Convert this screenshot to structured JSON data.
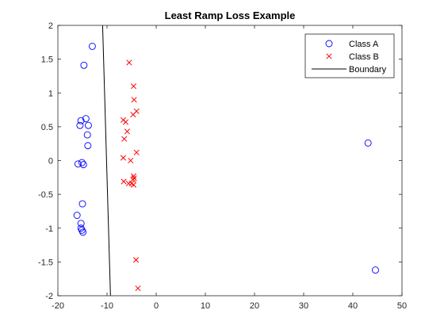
{
  "chart_data": {
    "type": "scatter",
    "title": "Least Ramp Loss Example",
    "xlabel": "",
    "ylabel": "",
    "xlim": [
      -20,
      50
    ],
    "ylim": [
      -2,
      2
    ],
    "xticks": [
      "-20",
      "-10",
      "0",
      "10",
      "20",
      "30",
      "40",
      "50"
    ],
    "yticks": [
      "-2",
      "-1.5",
      "-1",
      "-0.5",
      "0",
      "0.5",
      "1",
      "1.5",
      "2"
    ],
    "grid": false,
    "legend_position": "top-right",
    "series": [
      {
        "name": "Class A",
        "marker": "circle",
        "color": "#0000ff",
        "points": [
          [
            -13.0,
            1.69
          ],
          [
            -14.7,
            1.41
          ],
          [
            -14.3,
            0.62
          ],
          [
            -15.3,
            0.59
          ],
          [
            -15.5,
            0.52
          ],
          [
            -13.8,
            0.52
          ],
          [
            -14.0,
            0.38
          ],
          [
            -13.9,
            0.22
          ],
          [
            -15.9,
            -0.05
          ],
          [
            -15.1,
            -0.03
          ],
          [
            -14.8,
            -0.06
          ],
          [
            -15.0,
            -0.64
          ],
          [
            -16.1,
            -0.81
          ],
          [
            -15.3,
            -0.93
          ],
          [
            -15.3,
            -1.0
          ],
          [
            -15.1,
            -1.03
          ],
          [
            -14.9,
            -1.06
          ],
          [
            43.1,
            0.26
          ],
          [
            44.6,
            -1.62
          ]
        ]
      },
      {
        "name": "Class B",
        "marker": "x",
        "color": "#ff0000",
        "points": [
          [
            -5.5,
            1.45
          ],
          [
            -4.6,
            1.1
          ],
          [
            -4.5,
            0.9
          ],
          [
            -4.0,
            0.73
          ],
          [
            -4.7,
            0.68
          ],
          [
            -6.7,
            0.6
          ],
          [
            -6.2,
            0.57
          ],
          [
            -5.9,
            0.43
          ],
          [
            -6.5,
            0.32
          ],
          [
            -4.0,
            0.12
          ],
          [
            -6.7,
            0.04
          ],
          [
            -5.2,
            0.0
          ],
          [
            -4.6,
            -0.23
          ],
          [
            -4.5,
            -0.26
          ],
          [
            -4.7,
            -0.28
          ],
          [
            -6.6,
            -0.31
          ],
          [
            -5.6,
            -0.34
          ],
          [
            -5.0,
            -0.34
          ],
          [
            -4.6,
            -0.36
          ],
          [
            -4.1,
            -1.47
          ],
          [
            -3.7,
            -1.89
          ]
        ]
      },
      {
        "name": "Boundary",
        "marker": "line",
        "color": "#000000",
        "points": [
          [
            -10.9,
            2.0
          ],
          [
            -9.3,
            -2.0
          ]
        ]
      }
    ]
  }
}
